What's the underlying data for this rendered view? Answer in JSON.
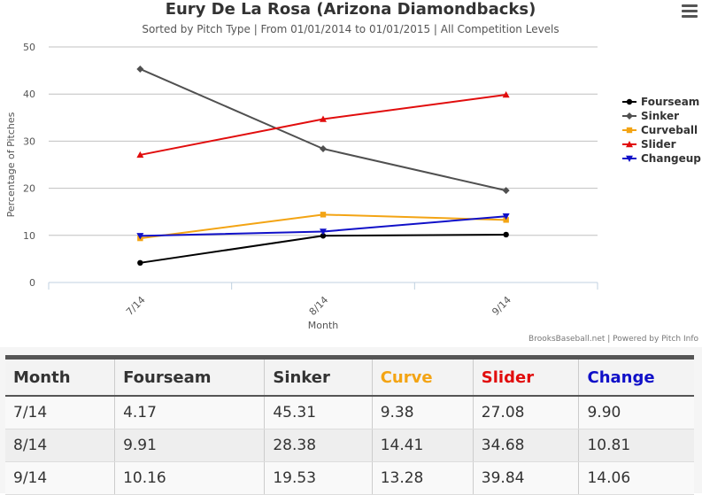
{
  "chart_data": {
    "type": "line",
    "title": "Eury De La Rosa (Arizona Diamondbacks)",
    "subtitle": "Sorted by Pitch Type | From 01/01/2014 to 01/01/2015 | All Competition Levels",
    "xlabel": "Month",
    "ylabel": "Percentage of Pitches",
    "categories": [
      "7/14",
      "8/14",
      "9/14"
    ],
    "ylim": [
      0,
      50
    ],
    "yticks": [
      "0",
      "10",
      "20",
      "30",
      "40",
      "50"
    ],
    "grid": true,
    "legend_position": "right",
    "credits": "BrooksBaseball.net | Powered by Pitch Info",
    "series": [
      {
        "name": "Fourseam",
        "color": "#000000",
        "marker": "circle",
        "values": [
          4.17,
          9.91,
          10.16
        ]
      },
      {
        "name": "Sinker",
        "color": "#505050",
        "marker": "diamond",
        "values": [
          45.31,
          28.38,
          19.53
        ]
      },
      {
        "name": "Curveball",
        "color": "#f3a414",
        "marker": "square",
        "values": [
          9.38,
          14.41,
          13.28
        ]
      },
      {
        "name": "Slider",
        "color": "#e10d0d",
        "marker": "triangle",
        "values": [
          27.08,
          34.68,
          39.84
        ]
      },
      {
        "name": "Changeup",
        "color": "#1010c8",
        "marker": "triangle-down",
        "values": [
          9.9,
          10.81,
          14.06
        ]
      }
    ]
  },
  "table": {
    "headers": [
      {
        "label": "Month",
        "color": "#333333"
      },
      {
        "label": "Fourseam",
        "color": "#333333"
      },
      {
        "label": "Sinker",
        "color": "#333333"
      },
      {
        "label": "Curve",
        "color": "#f3a414"
      },
      {
        "label": "Slider",
        "color": "#e10d0d"
      },
      {
        "label": "Change",
        "color": "#1010c8"
      }
    ],
    "rows": [
      [
        "7/14",
        "4.17",
        "45.31",
        "9.38",
        "27.08",
        "9.90"
      ],
      [
        "8/14",
        "9.91",
        "28.38",
        "14.41",
        "34.68",
        "10.81"
      ],
      [
        "9/14",
        "10.16",
        "19.53",
        "13.28",
        "39.84",
        "14.06"
      ]
    ]
  }
}
